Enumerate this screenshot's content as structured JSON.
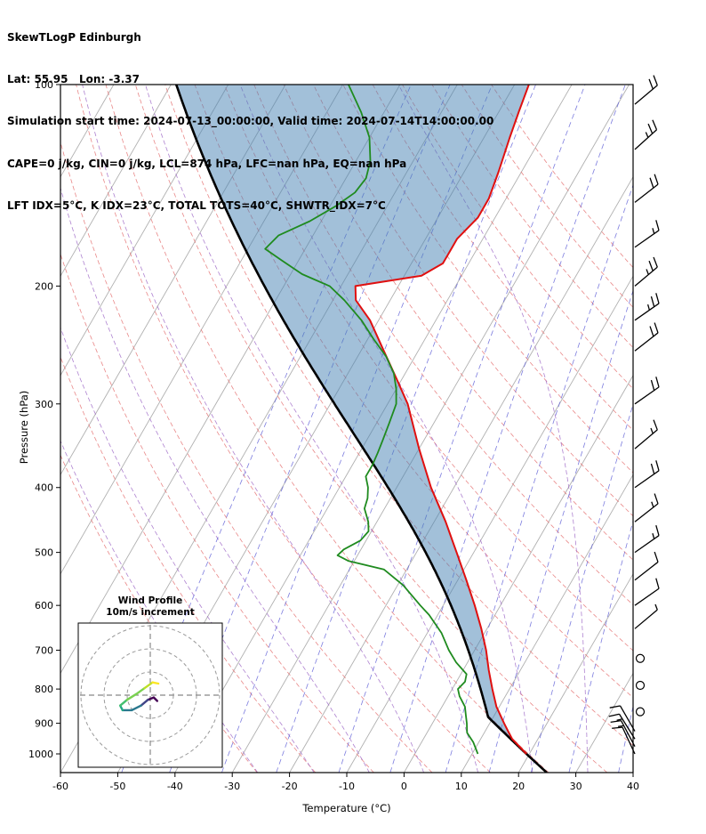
{
  "header": {
    "line1": "SkewTLogP Edinburgh",
    "line2": "Lat: 55.95   Lon: -3.37",
    "line3": "Simulation start time: 2024-07-13_00:00:00, Valid time: 2024-07-14T14:00:00.00",
    "line4": "CAPE=0 j/kg, CIN=0 j/kg, LCL=874 hPa, LFC=nan hPa, EQ=nan hPa",
    "line5": "LFT IDX=5°C, K IDX=23°C, TOTAL TOTS=40°C, SHWTR_IDX=7°C"
  },
  "chart_data": {
    "type": "skewt-logp",
    "station": "Edinburgh",
    "lat": 55.95,
    "lon": -3.37,
    "xlabel": "Temperature (°C)",
    "ylabel": "Pressure (hPa)",
    "xlim": [
      -60,
      40
    ],
    "plim": [
      100,
      1050
    ],
    "skew_deg": 30,
    "x_ticks": [
      -60,
      -50,
      -40,
      -30,
      -20,
      -10,
      0,
      10,
      20,
      30,
      40
    ],
    "y_ticks": [
      100,
      200,
      300,
      400,
      500,
      600,
      700,
      800,
      900,
      1000
    ],
    "isotherm_step": 10,
    "dry_adiabats_K": [
      243,
      253,
      263,
      273,
      283,
      293,
      303,
      313,
      323,
      333,
      343,
      353,
      363,
      373,
      383,
      393,
      403,
      413,
      423
    ],
    "moist_adiabats_C": [
      -30,
      -20,
      -10,
      0,
      10,
      20,
      30
    ],
    "mixing_ratios_gkg": [
      0.04,
      0.1,
      0.25,
      0.6,
      1.5,
      3,
      6,
      10,
      16,
      24,
      40
    ],
    "indices": {
      "CAPE_j_kg": 0,
      "CIN_j_kg": 0,
      "LCL_hPa": 874,
      "LFC_hPa": "nan",
      "EQ_hPa": "nan",
      "LFT_IDX_C": 5,
      "K_IDX_C": 23,
      "TOTAL_TOTS_C": 40,
      "SHWTR_IDX_C": 7
    },
    "temperature_profile": [
      [
        1000,
        19.5
      ],
      [
        950,
        15.5
      ],
      [
        925,
        14
      ],
      [
        900,
        12.5
      ],
      [
        850,
        9.5
      ],
      [
        800,
        7
      ],
      [
        750,
        4.5
      ],
      [
        700,
        2
      ],
      [
        650,
        -1
      ],
      [
        600,
        -4.5
      ],
      [
        550,
        -8.5
      ],
      [
        500,
        -13
      ],
      [
        450,
        -18
      ],
      [
        400,
        -24
      ],
      [
        350,
        -30
      ],
      [
        300,
        -36.5
      ],
      [
        275,
        -41
      ],
      [
        250,
        -46
      ],
      [
        225,
        -51.5
      ],
      [
        210,
        -56
      ],
      [
        200,
        -57.5
      ],
      [
        193,
        -47
      ],
      [
        185,
        -44.5
      ],
      [
        170,
        -44.5
      ],
      [
        158,
        -43
      ],
      [
        148,
        -43
      ],
      [
        135,
        -44
      ],
      [
        120,
        -45.5
      ],
      [
        110,
        -46.5
      ],
      [
        100,
        -47.5
      ]
    ],
    "dewpoint_profile": [
      [
        1000,
        11
      ],
      [
        960,
        9
      ],
      [
        930,
        7
      ],
      [
        900,
        6
      ],
      [
        875,
        5
      ],
      [
        850,
        4
      ],
      [
        820,
        2
      ],
      [
        800,
        1
      ],
      [
        780,
        1.5
      ],
      [
        760,
        1
      ],
      [
        730,
        -2
      ],
      [
        700,
        -4.5
      ],
      [
        660,
        -7.5
      ],
      [
        620,
        -11.5
      ],
      [
        600,
        -14
      ],
      [
        560,
        -19
      ],
      [
        530,
        -24
      ],
      [
        515,
        -31
      ],
      [
        505,
        -33.5
      ],
      [
        495,
        -33
      ],
      [
        480,
        -31
      ],
      [
        465,
        -30.5
      ],
      [
        450,
        -31.5
      ],
      [
        430,
        -33.5
      ],
      [
        415,
        -34
      ],
      [
        400,
        -35
      ],
      [
        385,
        -36.5
      ],
      [
        370,
        -36.5
      ],
      [
        355,
        -36.8
      ],
      [
        340,
        -37.2
      ],
      [
        320,
        -37.8
      ],
      [
        300,
        -38.5
      ],
      [
        285,
        -40
      ],
      [
        270,
        -42
      ],
      [
        255,
        -45
      ],
      [
        240,
        -49
      ],
      [
        225,
        -53
      ],
      [
        210,
        -58
      ],
      [
        200,
        -62
      ],
      [
        192,
        -68
      ],
      [
        183,
        -73
      ],
      [
        176,
        -77
      ],
      [
        168,
        -76
      ],
      [
        160,
        -72
      ],
      [
        152,
        -69
      ],
      [
        145,
        -67
      ],
      [
        138,
        -66.5
      ],
      [
        130,
        -67.5
      ],
      [
        120,
        -70
      ],
      [
        110,
        -74
      ],
      [
        100,
        -79
      ]
    ],
    "parcel_surface": {
      "p": 1000,
      "T": 19.5,
      "Td": 11
    },
    "winds": [
      [
        107,
        20,
        50
      ],
      [
        125,
        25,
        48
      ],
      [
        150,
        20,
        52
      ],
      [
        175,
        15,
        55
      ],
      [
        200,
        25,
        50
      ],
      [
        225,
        25,
        55
      ],
      [
        250,
        20,
        52
      ],
      [
        300,
        20,
        55
      ],
      [
        350,
        15,
        50
      ],
      [
        400,
        20,
        55
      ],
      [
        450,
        15,
        52
      ],
      [
        500,
        15,
        55
      ],
      [
        550,
        10,
        52
      ],
      [
        600,
        10,
        55
      ],
      [
        650,
        5,
        50
      ],
      [
        720,
        0,
        0
      ],
      [
        790,
        0,
        0
      ],
      [
        865,
        0,
        0
      ],
      [
        925,
        10,
        330
      ],
      [
        950,
        15,
        328
      ],
      [
        975,
        15,
        332
      ],
      [
        1000,
        10,
        335
      ]
    ],
    "hodograph": {
      "title1": "Wind Profile",
      "title2": "10m/s increment",
      "rings_ms": [
        10,
        20,
        30
      ],
      "trace_uv": [
        [
          3,
          -2.5
        ],
        [
          1.5,
          -1
        ],
        [
          -1,
          -2
        ],
        [
          -4,
          -4.5
        ],
        [
          -8,
          -6.5
        ],
        [
          -12,
          -6.5
        ],
        [
          -13,
          -4.5
        ],
        [
          -10,
          -2
        ],
        [
          -6,
          0.5
        ],
        [
          -2.5,
          3
        ],
        [
          1,
          5.5
        ],
        [
          3.5,
          5
        ]
      ],
      "palette": [
        "#440154",
        "#414487",
        "#2a788e",
        "#22a884",
        "#44bf70",
        "#7ad151",
        "#bddf26",
        "#fde725"
      ]
    },
    "colors": {
      "temperature": "#e01010",
      "dewpoint": "#1f8b1f",
      "parcel": "#000000",
      "shade": "#4682b4",
      "shade_alpha": 0.5,
      "isotherm": "#b0b0b0",
      "dry_adiabat": "#e57373",
      "moist_adiabat": "#a06cc8",
      "mixing_ratio": "#5b5bd6",
      "barb": "#000000"
    }
  }
}
